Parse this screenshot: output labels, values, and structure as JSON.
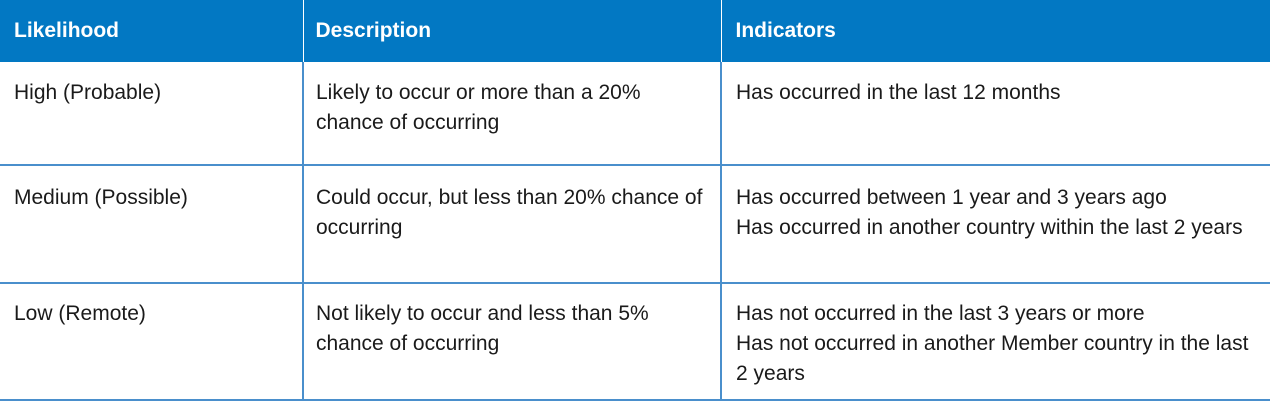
{
  "table": {
    "headers": [
      "Likelihood",
      "Description",
      "Indicators"
    ],
    "rows": [
      {
        "likelihood": "High (Probable)",
        "description": "Likely to occur or more than a 20% chance of occurring",
        "indicators": [
          "Has occurred in the last 12 months"
        ]
      },
      {
        "likelihood": "Medium (Possible)",
        "description": "Could occur, but less than 20% chance of occurring",
        "indicators": [
          "Has occurred between 1 year and 3 years ago",
          "Has occurred in another  country within the last 2 years"
        ]
      },
      {
        "likelihood": "Low (Remote)",
        "description": "Not likely to occur and less than 5% chance of occurring",
        "indicators": [
          "Has not occurred in the last 3 years or more",
          "Has not occurred in another Member country in the last 2 years"
        ]
      }
    ]
  },
  "colors": {
    "header_background": "#0278c3",
    "header_text": "#ffffff",
    "border": "#4a8fcc"
  }
}
